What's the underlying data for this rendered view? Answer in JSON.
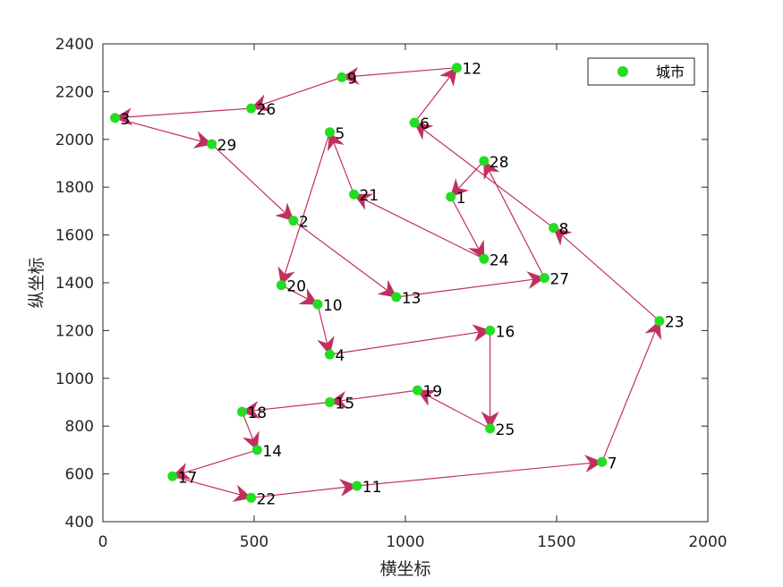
{
  "chart_data": {
    "type": "scatter",
    "xlabel": "横坐标",
    "ylabel": "纵坐标",
    "xlim": [
      0,
      2000
    ],
    "ylim": [
      400,
      2400
    ],
    "xticks": [
      "0",
      "500",
      "1000",
      "1500",
      "2000"
    ],
    "yticks": [
      "400",
      "600",
      "800",
      "1000",
      "1200",
      "1400",
      "1600",
      "1800",
      "2000",
      "2200",
      "2400"
    ],
    "grid": false,
    "legend": {
      "position": "top-right",
      "entries": [
        "城市"
      ]
    },
    "colors": {
      "points": "#22dd22",
      "route": "#c0305e",
      "axes": "#262626"
    },
    "series": [
      {
        "name": "城市",
        "points": [
          {
            "label": "1",
            "x": 1150,
            "y": 1760
          },
          {
            "label": "2",
            "x": 630,
            "y": 1660
          },
          {
            "label": "3",
            "x": 40,
            "y": 2090
          },
          {
            "label": "4",
            "x": 750,
            "y": 1100
          },
          {
            "label": "5",
            "x": 750,
            "y": 2030
          },
          {
            "label": "6",
            "x": 1030,
            "y": 2070
          },
          {
            "label": "7",
            "x": 1650,
            "y": 650
          },
          {
            "label": "8",
            "x": 1490,
            "y": 1630
          },
          {
            "label": "9",
            "x": 790,
            "y": 2260
          },
          {
            "label": "10",
            "x": 710,
            "y": 1310
          },
          {
            "label": "11",
            "x": 840,
            "y": 550
          },
          {
            "label": "12",
            "x": 1170,
            "y": 2300
          },
          {
            "label": "13",
            "x": 970,
            "y": 1340
          },
          {
            "label": "14",
            "x": 510,
            "y": 700
          },
          {
            "label": "15",
            "x": 750,
            "y": 900
          },
          {
            "label": "16",
            "x": 1280,
            "y": 1200
          },
          {
            "label": "17",
            "x": 230,
            "y": 590
          },
          {
            "label": "18",
            "x": 460,
            "y": 860
          },
          {
            "label": "19",
            "x": 1040,
            "y": 950
          },
          {
            "label": "20",
            "x": 590,
            "y": 1390
          },
          {
            "label": "21",
            "x": 830,
            "y": 1770
          },
          {
            "label": "22",
            "x": 490,
            "y": 500
          },
          {
            "label": "23",
            "x": 1840,
            "y": 1240
          },
          {
            "label": "24",
            "x": 1260,
            "y": 1500
          },
          {
            "label": "25",
            "x": 1280,
            "y": 790
          },
          {
            "label": "26",
            "x": 490,
            "y": 2130
          },
          {
            "label": "27",
            "x": 1460,
            "y": 1420
          },
          {
            "label": "28",
            "x": 1260,
            "y": 1910
          },
          {
            "label": "29",
            "x": 360,
            "y": 1980
          }
        ]
      }
    ],
    "route": [
      "3",
      "29",
      "2",
      "13",
      "27",
      "28",
      "1",
      "24",
      "21",
      "5",
      "20",
      "10",
      "4",
      "16",
      "25",
      "19",
      "15",
      "18",
      "14",
      "17",
      "22",
      "11",
      "7",
      "23",
      "8",
      "6",
      "12",
      "9",
      "26",
      "3"
    ]
  }
}
